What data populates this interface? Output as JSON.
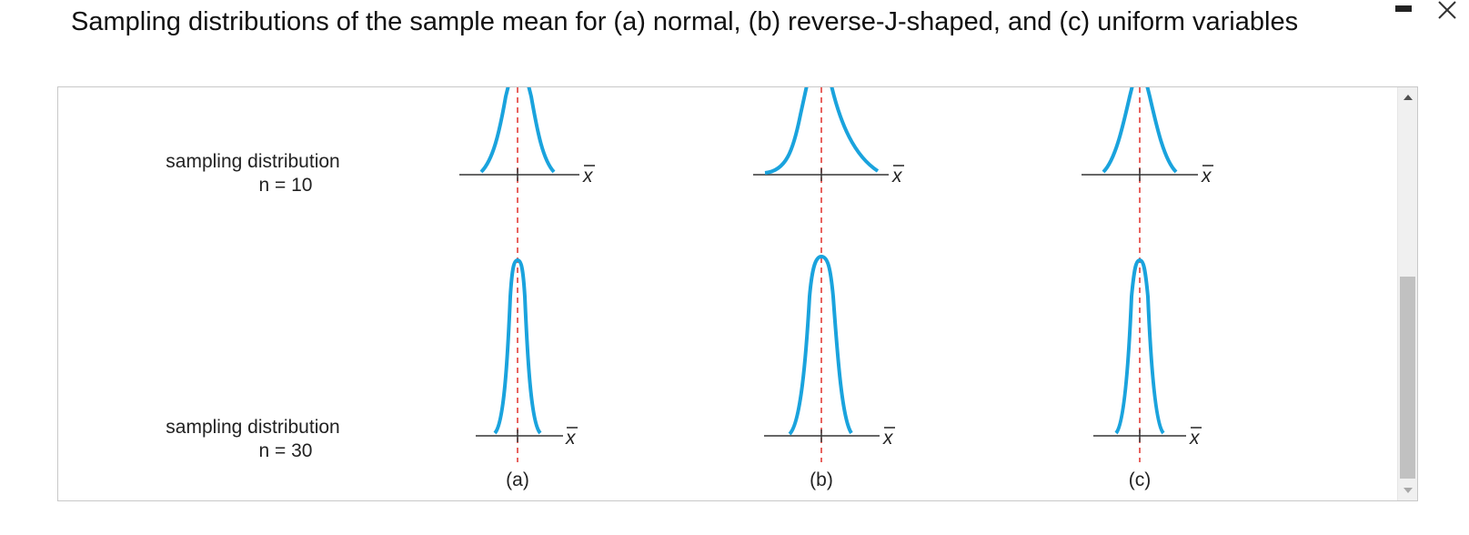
{
  "window": {
    "title": "Sampling distributions of the sample mean for (a) normal, (b) reverse-J-shaped, and (c) uniform variables",
    "minimize_icon": "minimize-icon",
    "close_icon": "close-icon"
  },
  "figure": {
    "row_labels": [
      {
        "line1": "sampling distribution",
        "line2": "n = 10"
      },
      {
        "line1": "sampling distribution",
        "line2": "n = 30"
      }
    ],
    "axis_label": "x",
    "panel_labels": [
      "(a)",
      "(b)",
      "(c)"
    ],
    "colors": {
      "curve": "#1aa3dd",
      "mean_line": "#e0312c",
      "axis": "#333333"
    }
  },
  "scrollbar": {
    "up_icon": "scroll-up-icon",
    "down_icon": "scroll-down-icon"
  }
}
